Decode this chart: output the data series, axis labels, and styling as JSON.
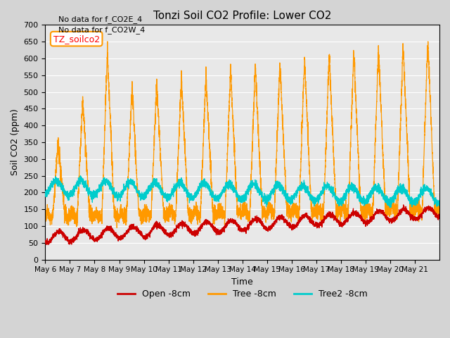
{
  "title": "Tonzi Soil CO2 Profile: Lower CO2",
  "xlabel": "Time",
  "ylabel": "Soil CO2 (ppm)",
  "ylim": [
    0,
    700
  ],
  "yticks": [
    0,
    50,
    100,
    150,
    200,
    250,
    300,
    350,
    400,
    450,
    500,
    550,
    600,
    650,
    700
  ],
  "annotation1": "No data for f_CO2E_4",
  "annotation2": "No data for f_CO2W_4",
  "legend_box_label": "TZ_soilco2",
  "legend_entries": [
    "Open -8cm",
    "Tree -8cm",
    "Tree2 -8cm"
  ],
  "line_colors": [
    "#cc0000",
    "#ff9900",
    "#00cccc"
  ],
  "fig_facecolor": "#d4d4d4",
  "ax_facecolor": "#e8e8e8",
  "n_days": 16,
  "start_day": 6
}
